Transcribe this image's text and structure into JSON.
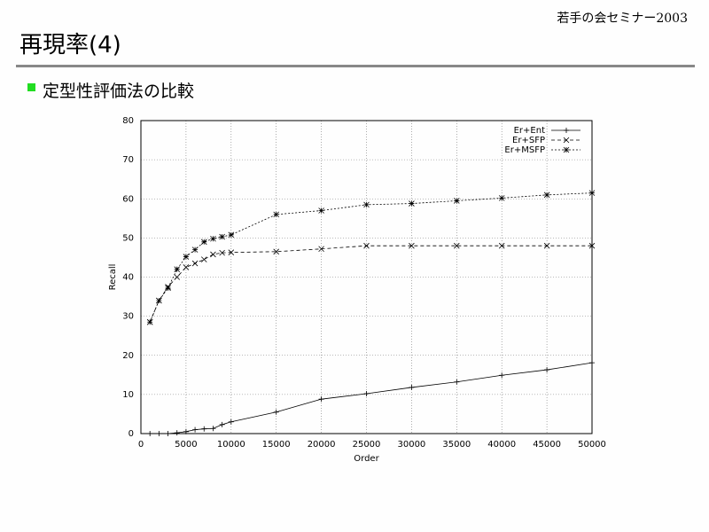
{
  "header": {
    "seminar": "若手の会セミナー2003",
    "title": "再現率(4)",
    "bullet": "定型性評価法の比較"
  },
  "chart_data": {
    "type": "line",
    "x_label": "Order",
    "y_label": "Recall",
    "x": [
      1000,
      2000,
      3000,
      4000,
      5000,
      6000,
      7000,
      8000,
      9000,
      10000,
      15000,
      20000,
      25000,
      30000,
      35000,
      40000,
      45000,
      50000
    ],
    "series": [
      {
        "name": "Er+Ent",
        "color": "#000000",
        "dash": "solid",
        "marker": "plus",
        "values": [
          0,
          0,
          0,
          0.2,
          0.5,
          1,
          1.2,
          1.3,
          2.3,
          3,
          5.5,
          8.8,
          10.2,
          11.8,
          13.2,
          14.9,
          16.3,
          18.1
        ]
      },
      {
        "name": "Er+SFP",
        "color": "#000000",
        "dash": "dashed",
        "marker": "cross",
        "values": [
          28.5,
          34,
          37.5,
          40,
          42.5,
          43.5,
          44.5,
          45.8,
          46.2,
          46.3,
          46.5,
          47.2,
          48,
          48,
          48,
          48,
          48,
          48
        ]
      },
      {
        "name": "Er+MSFP",
        "color": "#000000",
        "dash": "dotted",
        "marker": "star",
        "values": [
          28.5,
          34,
          37.2,
          42,
          45.2,
          47,
          49,
          49.8,
          50.3,
          50.8,
          56,
          57,
          58.5,
          58.8,
          59.5,
          60.2,
          61,
          61.5
        ]
      }
    ],
    "xlim": [
      0,
      50000
    ],
    "xticks": [
      0,
      5000,
      10000,
      15000,
      20000,
      25000,
      30000,
      35000,
      40000,
      45000,
      50000
    ],
    "ylim": [
      0,
      80
    ],
    "yticks": [
      0,
      10,
      20,
      30,
      40,
      50,
      60,
      70,
      80
    ],
    "grid": true,
    "legend": "top-right"
  }
}
